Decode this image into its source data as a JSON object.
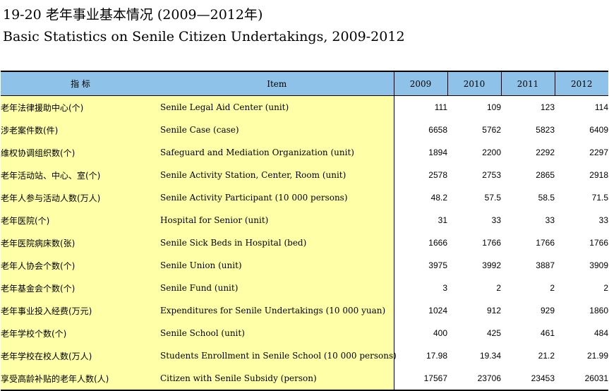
{
  "title_zh": "19-20  老年事业基本情况 (2009—2012年)",
  "title_en": "Basic Statistics on Senile Citizen Undertakings, 2009-2012",
  "headers": {
    "indicator": "指  标",
    "item": "Item",
    "years": [
      "2009",
      "2010",
      "2011",
      "2012"
    ]
  },
  "rows": [
    {
      "zh": "老年法律援助中心(个)",
      "en": "Senile Legal Aid Center (unit)",
      "values": [
        "111",
        "109",
        "123",
        "114"
      ]
    },
    {
      "zh": "涉老案件数(件)",
      "en": "Senile Case (case)",
      "values": [
        "6658",
        "5762",
        "5823",
        "6409"
      ]
    },
    {
      "zh": "维权协调组织数(个)",
      "en": "Safeguard and Mediation Organization (unit)",
      "values": [
        "1894",
        "2200",
        "2292",
        "2297"
      ]
    },
    {
      "zh": "老年活动站、中心、室(个)",
      "en": "Senile Activity Station, Center, Room (unit)",
      "values": [
        "2578",
        "2753",
        "2865",
        "2918"
      ]
    },
    {
      "zh": "老年人参与活动人数(万人)",
      "en": "Senile Activity Participant (10 000 persons)",
      "values": [
        "48.2",
        "57.5",
        "58.5",
        "71.5"
      ]
    },
    {
      "zh": "老年医院(个)",
      "en": "Hospital for Senior (unit)",
      "values": [
        "31",
        "33",
        "33",
        "33"
      ]
    },
    {
      "zh": "老年医院病床数(张)",
      "en": "Senile Sick Beds in Hospital (bed)",
      "values": [
        "1666",
        "1766",
        "1766",
        "1766"
      ]
    },
    {
      "zh": "老年人协会个数(个)",
      "en": "Senile Union (unit)",
      "values": [
        "3975",
        "3992",
        "3887",
        "3909"
      ]
    },
    {
      "zh": "老年基金会个数(个)",
      "en": "Senile Fund (unit)",
      "values": [
        "3",
        "2",
        "2",
        "2"
      ]
    },
    {
      "zh": "老年事业投入经费(万元)",
      "en": "Expenditures for Senile Undertakings (10 000 yuan)",
      "values": [
        "1024",
        "912",
        "929",
        "1860"
      ]
    },
    {
      "zh": "老年学校个数(个)",
      "en": "Senile School (unit)",
      "values": [
        "400",
        "425",
        "461",
        "484"
      ]
    },
    {
      "zh": "老年学校在校人数(万人)",
      "en": "Students Enrollment in Senile School (10 000 persons)",
      "values": [
        "17.98",
        "19.34",
        "21.2",
        "21.99"
      ]
    },
    {
      "zh": "享受高龄补贴的老年人数(人)",
      "en": "Citizen with Senile Subsidy (person)",
      "values": [
        "17567",
        "23706",
        "23453",
        "26031"
      ]
    }
  ]
}
